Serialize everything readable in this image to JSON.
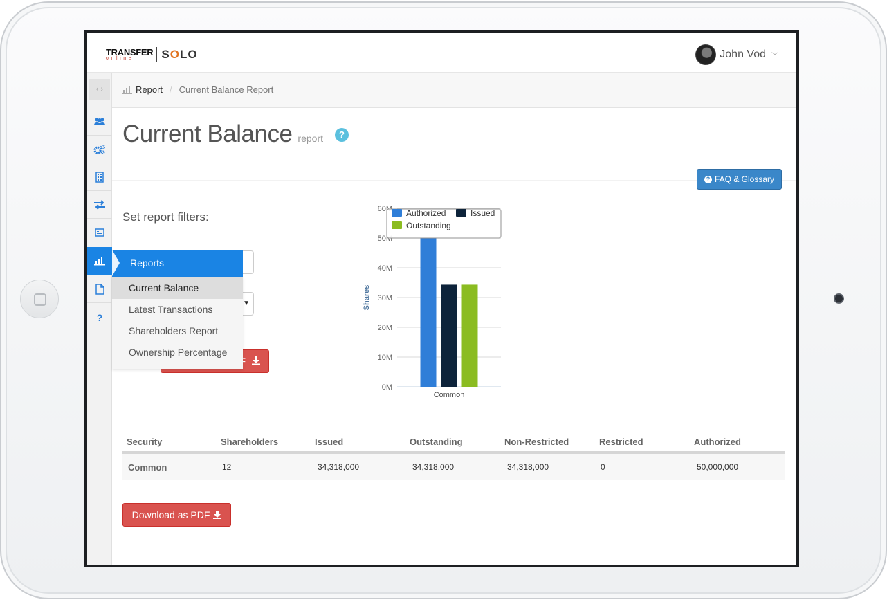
{
  "app": {
    "logo_word": "TRANSFER",
    "logo_sub": "online",
    "logo_product_a": "S",
    "logo_product_o": "O",
    "logo_product_b": "L",
    "logo_product_c": "O"
  },
  "user": {
    "name": "John Vod"
  },
  "sidebar": {
    "items": [
      {
        "icon": "users-icon"
      },
      {
        "icon": "gears-icon"
      },
      {
        "icon": "building-icon"
      },
      {
        "icon": "transfer-arrows-icon"
      },
      {
        "icon": "certificate-icon"
      },
      {
        "icon": "bar-chart-icon",
        "active": true
      },
      {
        "icon": "document-icon"
      },
      {
        "icon": "question-icon"
      }
    ]
  },
  "breadcrumb": {
    "home": "Report",
    "current": "Current Balance Report"
  },
  "page": {
    "title": "Current Balance",
    "subtitle": "report",
    "help": "?"
  },
  "faq_button": {
    "label": "FAQ & Glossary"
  },
  "filters": {
    "label": "Set report filters:",
    "select_arrow": "▼",
    "pdf_label_fragment": "F"
  },
  "reports_menu": {
    "title": "Reports",
    "items": [
      "Current Balance",
      "Latest Transactions",
      "Shareholders Report",
      "Ownership Percentage"
    ],
    "active_index": 0
  },
  "chart_data": {
    "type": "bar",
    "categories": [
      "Common"
    ],
    "series": [
      {
        "name": "Authorized",
        "values": [
          50000000
        ],
        "color": "#2f7ed8"
      },
      {
        "name": "Issued",
        "values": [
          34318000
        ],
        "color": "#0d233a"
      },
      {
        "name": "Outstanding",
        "values": [
          34318000
        ],
        "color": "#8bbc21"
      }
    ],
    "ylabel": "Shares",
    "ylim": [
      0,
      60000000
    ],
    "yticks": [
      "0M",
      "10M",
      "20M",
      "30M",
      "40M",
      "50M",
      "60M"
    ],
    "grid": true,
    "legend": "top-left"
  },
  "table": {
    "headers": [
      "Security",
      "Shareholders",
      "Issued",
      "Outstanding",
      "Non-Restricted",
      "Restricted",
      "Authorized"
    ],
    "rows": [
      [
        "Common",
        "12",
        "34,318,000",
        "34,318,000",
        "34,318,000",
        "0",
        "50,000,000"
      ]
    ]
  },
  "download_button": {
    "label": "Download as PDF"
  }
}
